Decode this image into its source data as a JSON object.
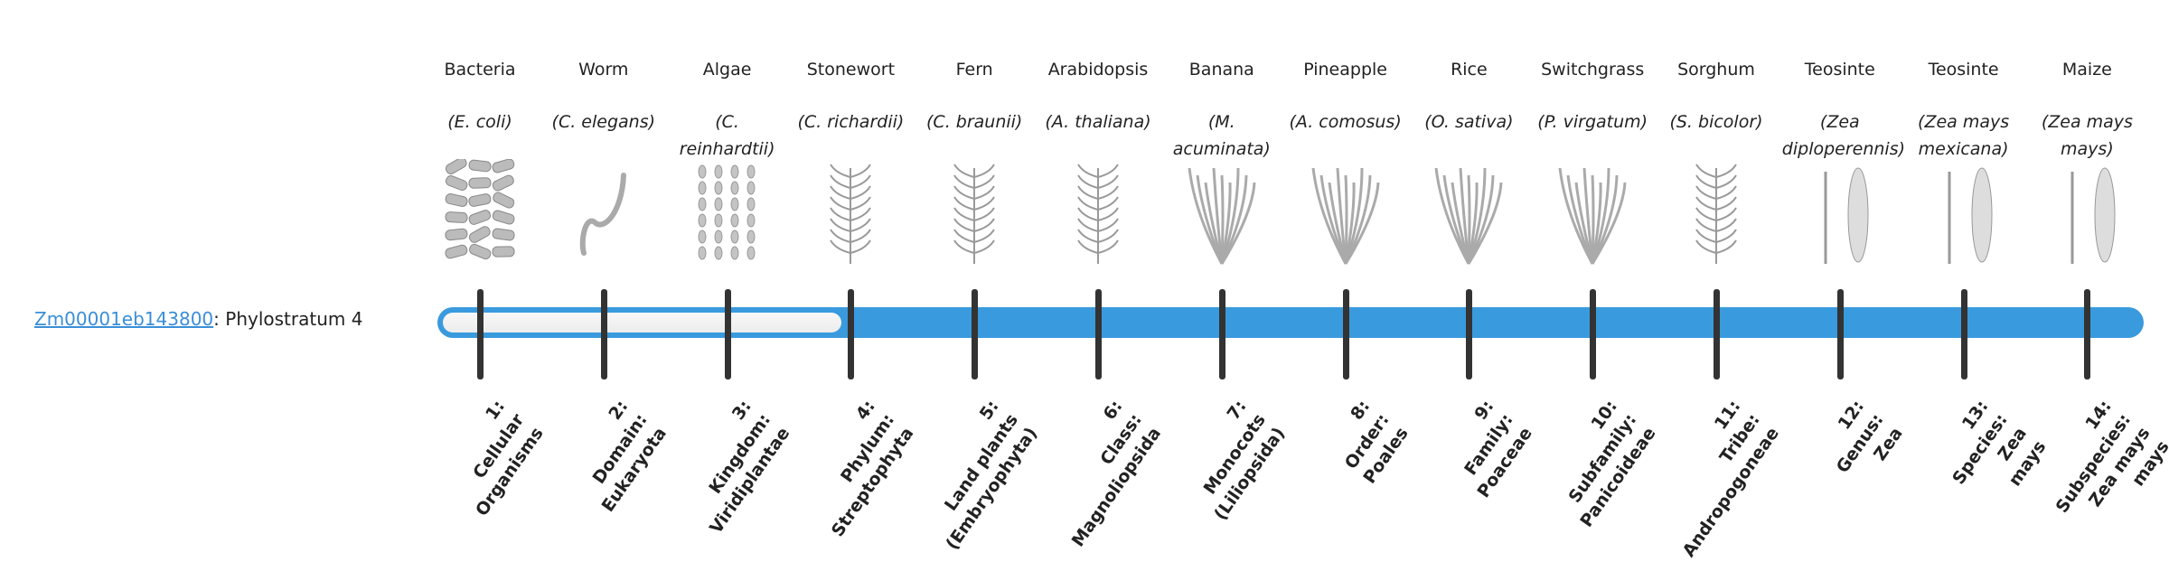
{
  "gene": {
    "id": "Zm00001eb143800",
    "suffix": ": Phylostratum 4"
  },
  "phylostratum": 4,
  "total_strata": 14,
  "colors": {
    "bar_fill": "#3a9ade",
    "bar_empty": "#f2f2f2",
    "tick": "#333333",
    "link": "#3a8fd8"
  },
  "columns": [
    {
      "common": "Bacteria",
      "species": "(E. coli)",
      "stratum": "1: Cellular Organisms",
      "lines": [
        "1:",
        "Cellular",
        "Organisms"
      ],
      "icon": "bacteria-icon"
    },
    {
      "common": "Worm",
      "species": "(C. elegans)",
      "lines": [
        "2:",
        "Domain:",
        "Eukaryota"
      ],
      "icon": "worm-icon"
    },
    {
      "common": "Algae",
      "species": "(C. reinhardtii)",
      "lines": [
        "3:",
        "Kingdom:",
        "Viridiplantae"
      ],
      "icon": "algae-icon"
    },
    {
      "common": "Stonewort",
      "species": "(C. richardii)",
      "lines": [
        "4:",
        "Phylum:",
        "Streptophyta"
      ],
      "icon": "stonewort-icon"
    },
    {
      "common": "Fern",
      "species": "(C. braunii)",
      "lines": [
        "5:",
        "Land plants",
        "(Embryophyta)"
      ],
      "icon": "fern-icon"
    },
    {
      "common": "Arabidopsis",
      "species": "(A. thaliana)",
      "lines": [
        "6:",
        "Class:",
        "Magnoliopsida"
      ],
      "icon": "arabidopsis-icon"
    },
    {
      "common": "Banana",
      "species": "(M. acuminata)",
      "lines": [
        "7:",
        "Monocots",
        "(Liliopsida)"
      ],
      "icon": "banana-icon"
    },
    {
      "common": "Pineapple",
      "species": "(A. comosus)",
      "lines": [
        "8:",
        "Order:",
        "Poales"
      ],
      "icon": "pineapple-icon"
    },
    {
      "common": "Rice",
      "species": "(O. sativa)",
      "lines": [
        "9:",
        "Family:",
        "Poaceae"
      ],
      "icon": "rice-icon"
    },
    {
      "common": "Switchgrass",
      "species": "(P. virgatum)",
      "lines": [
        "10:",
        "Subfamily:",
        "Panicoideae"
      ],
      "icon": "switchgrass-icon"
    },
    {
      "common": "Sorghum",
      "species": "(S. bicolor)",
      "lines": [
        "11:",
        "Tribe:",
        "Andropogoneae"
      ],
      "icon": "sorghum-icon"
    },
    {
      "common": "Teosinte",
      "species": "(Zea diploperennis)",
      "lines": [
        "12:",
        "Genus:",
        "Zea"
      ],
      "icon": "teosinte-icon"
    },
    {
      "common": "Teosinte",
      "species": "(Zea mays mexicana)",
      "lines": [
        "13:",
        "Species:",
        "Zea",
        "mays"
      ],
      "icon": "teosinte-mexicana-icon"
    },
    {
      "common": "Maize",
      "species": "(Zea mays mays)",
      "lines": [
        "14:",
        "Subspecies:",
        "Zea mays",
        "mays"
      ],
      "icon": "maize-icon"
    }
  ]
}
